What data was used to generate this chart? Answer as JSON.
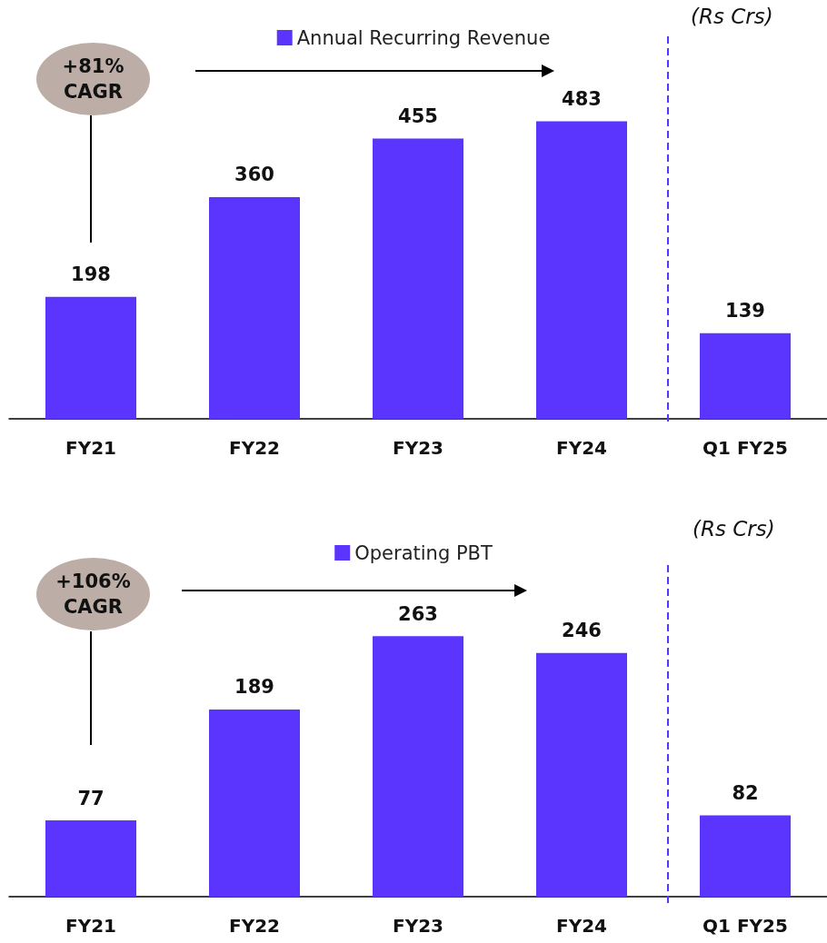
{
  "chart_data": [
    {
      "type": "bar",
      "categories": [
        "FY21",
        "FY22",
        "FY23",
        "FY24",
        "Q1 FY25"
      ],
      "series": [
        {
          "name": "Annual Recurring Revenue",
          "color": "#5b35fd",
          "values": [
            198,
            360,
            455,
            483,
            139
          ]
        }
      ],
      "data_labels": true,
      "legend": "top",
      "annotations": [
        "+81% CAGR",
        "(Rs Crs)"
      ]
    },
    {
      "type": "bar",
      "categories": [
        "FY21",
        "FY22",
        "FY23",
        "FY24",
        "Q1 FY25"
      ],
      "series": [
        {
          "name": "Operating PBT",
          "color": "#5b35fd",
          "values": [
            77,
            189,
            263,
            246,
            82
          ]
        }
      ],
      "data_labels": true,
      "legend": "top",
      "annotations": [
        "+106% CAGR",
        "(Rs Crs)"
      ]
    }
  ]
}
